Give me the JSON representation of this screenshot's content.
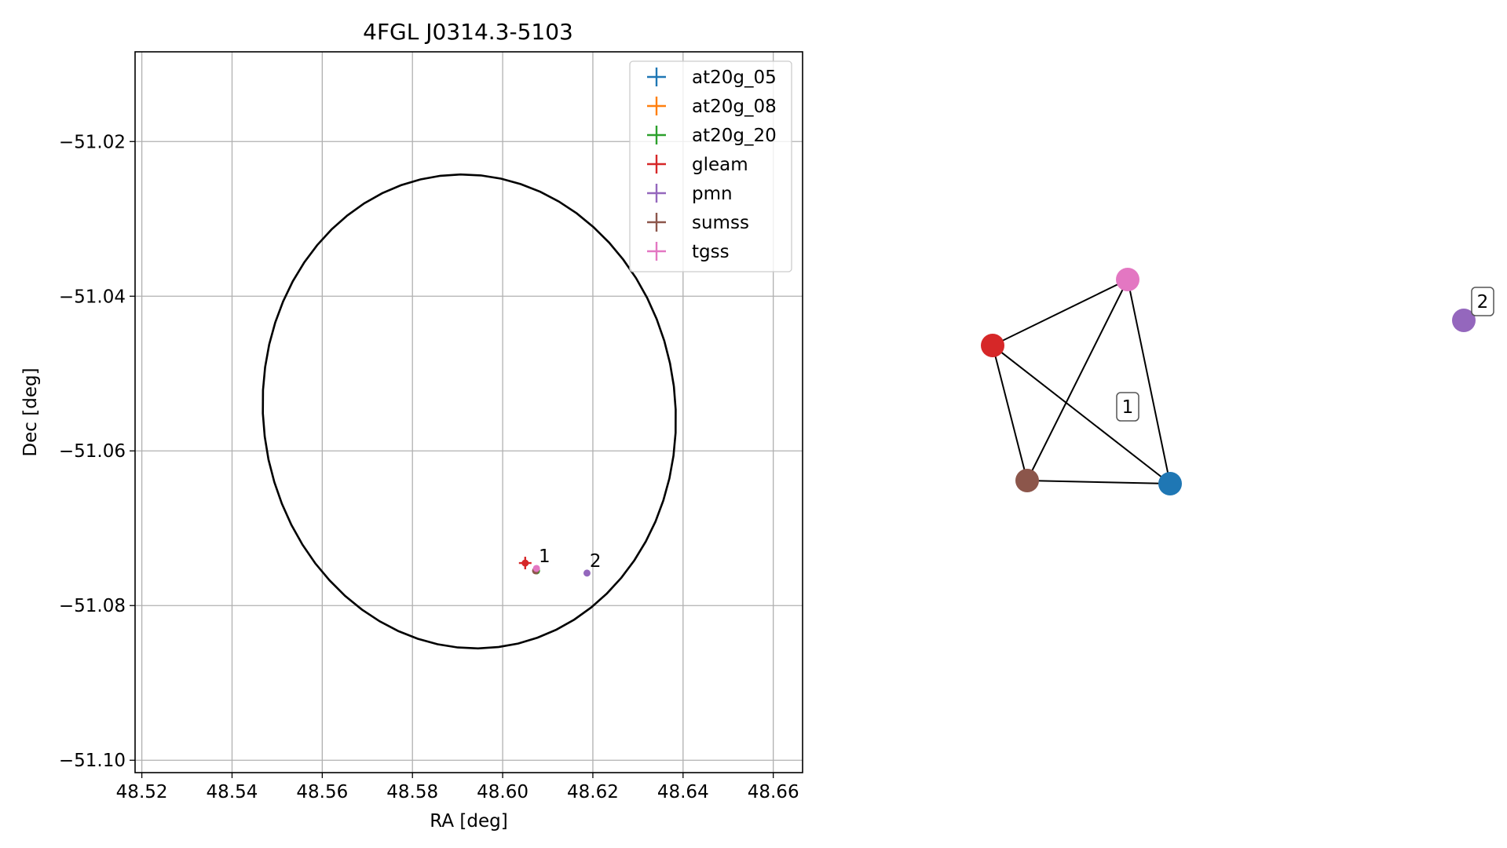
{
  "chart_data": [
    {
      "type": "scatter",
      "title": "4FGL J0314.3-5103",
      "xlabel": "RA [deg]",
      "ylabel": "Dec [deg]",
      "xlim": [
        48.5185,
        48.6665
      ],
      "ylim": [
        -51.1016,
        -51.0084
      ],
      "xticks": [
        48.52,
        48.54,
        48.56,
        48.58,
        48.6,
        48.62,
        48.64,
        48.66
      ],
      "xtick_labels": [
        "48.52",
        "48.54",
        "48.56",
        "48.58",
        "48.60",
        "48.62",
        "48.64",
        "48.66"
      ],
      "yticks": [
        -51.02,
        -51.04,
        -51.06,
        -51.08,
        -51.1
      ],
      "ytick_labels": [
        "−51.02",
        "−51.04",
        "−51.06",
        "−51.08",
        "−51.10"
      ],
      "grid": true,
      "legend_position": "top-right",
      "ellipse": {
        "center": [
          48.5926,
          -51.0549
        ],
        "ra_semi_axis": 0.0457,
        "dec_semi_axis": 0.0307,
        "tilt_deg": 7,
        "color": "#000000"
      },
      "series": [
        {
          "name": "at20g_05",
          "color": "#1f77b4",
          "points": [
            {
              "x": 48.6075,
              "y": -51.0755
            }
          ]
        },
        {
          "name": "at20g_08",
          "color": "#ff7f0e",
          "points": [
            {
              "x": 48.6075,
              "y": -51.0755
            }
          ]
        },
        {
          "name": "at20g_20",
          "color": "#2ca02c",
          "points": [
            {
              "x": 48.6075,
              "y": -51.0755
            }
          ]
        },
        {
          "name": "gleam",
          "color": "#d62728",
          "points": [
            {
              "x": 48.605,
              "y": -51.0745
            }
          ]
        },
        {
          "name": "pmn",
          "color": "#9467bd",
          "points": [
            {
              "x": 48.6187,
              "y": -51.0758
            }
          ]
        },
        {
          "name": "sumss",
          "color": "#8c564b",
          "points": [
            {
              "x": 48.6073,
              "y": -51.0755
            }
          ]
        },
        {
          "name": "tgss",
          "color": "#e377c2",
          "points": [
            {
              "x": 48.6075,
              "y": -51.0752
            }
          ]
        }
      ],
      "cluster_labels": [
        {
          "text": "1",
          "x": 48.608,
          "y": -51.0744
        },
        {
          "text": "2",
          "x": 48.6193,
          "y": -51.075
        }
      ]
    },
    {
      "type": "network",
      "nodes": [
        {
          "id": "tgss",
          "color": "#e377c2"
        },
        {
          "id": "gleam",
          "color": "#d62728"
        },
        {
          "id": "sumss",
          "color": "#8c564b"
        },
        {
          "id": "at20g",
          "color": "#1f77b4"
        },
        {
          "id": "pmn",
          "color": "#9467bd"
        }
      ],
      "edges": [
        [
          "gleam",
          "tgss"
        ],
        [
          "tgss",
          "sumss"
        ],
        [
          "tgss",
          "at20g"
        ],
        [
          "gleam",
          "sumss"
        ],
        [
          "gleam",
          "at20g"
        ],
        [
          "sumss",
          "at20g"
        ]
      ],
      "labels": [
        {
          "text": "1"
        },
        {
          "text": "2"
        }
      ]
    }
  ]
}
